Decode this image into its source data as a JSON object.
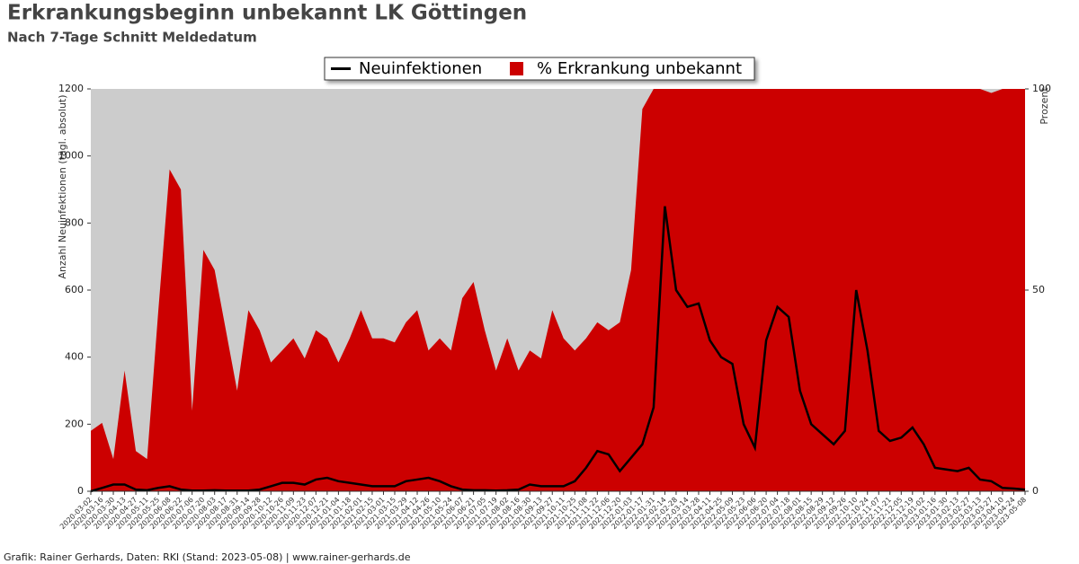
{
  "chart_data": {
    "type": "line-area",
    "title": "Erkrankungsbeginn unbekannt LK Göttingen",
    "subtitle": "Nach 7-Tage Schnitt Meldedatum",
    "ylabel": "Anzahl Neuinfektionen (tägl. absolut)",
    "y2label": "Prozent",
    "footer": "Grafik: Rainer Gerhards, Daten: RKI (Stand: 2023-05-08) | www.rainer-gerhards.de",
    "x": [
      "2020-03-02",
      "2020-03-16",
      "2020-03-30",
      "2020-04-13",
      "2020-04-27",
      "2020-05-11",
      "2020-05-25",
      "2020-06-08",
      "2020-06-22",
      "2020-07-06",
      "2020-07-20",
      "2020-08-03",
      "2020-08-17",
      "2020-08-31",
      "2020-09-14",
      "2020-09-28",
      "2020-10-12",
      "2020-10-26",
      "2020-11-09",
      "2020-11-23",
      "2020-12-07",
      "2020-12-21",
      "2021-01-04",
      "2021-01-18",
      "2021-02-01",
      "2021-02-15",
      "2021-03-01",
      "2021-03-15",
      "2021-03-29",
      "2021-04-12",
      "2021-04-26",
      "2021-05-10",
      "2021-05-24",
      "2021-06-07",
      "2021-06-21",
      "2021-07-05",
      "2021-07-19",
      "2021-08-02",
      "2021-08-16",
      "2021-08-30",
      "2021-09-13",
      "2021-09-27",
      "2021-10-11",
      "2021-10-25",
      "2021-11-08",
      "2021-11-22",
      "2021-12-06",
      "2021-12-20",
      "2022-01-03",
      "2022-01-17",
      "2022-01-31",
      "2022-02-14",
      "2022-02-28",
      "2022-03-14",
      "2022-03-28",
      "2022-04-11",
      "2022-04-25",
      "2022-05-09",
      "2022-05-23",
      "2022-06-06",
      "2022-06-20",
      "2022-07-04",
      "2022-07-18",
      "2022-08-01",
      "2022-08-15",
      "2022-08-29",
      "2022-09-12",
      "2022-09-26",
      "2022-10-10",
      "2022-10-24",
      "2022-11-07",
      "2022-11-21",
      "2022-12-05",
      "2022-12-19",
      "2023-01-02",
      "2023-01-16",
      "2023-01-30",
      "2023-02-13",
      "2023-02-27",
      "2023-03-13",
      "2023-03-27",
      "2023-04-10",
      "2023-04-24",
      "2023-05-08"
    ],
    "series": [
      {
        "name": "% Erkrankung unbekannt",
        "color": "#cc0000",
        "axis": "y2",
        "values": [
          15,
          17,
          8,
          30,
          10,
          8,
          45,
          80,
          75,
          20,
          60,
          55,
          40,
          25,
          45,
          40,
          32,
          35,
          38,
          33,
          40,
          38,
          32,
          38,
          45,
          38,
          38,
          37,
          42,
          45,
          35,
          38,
          35,
          48,
          52,
          40,
          30,
          38,
          30,
          35,
          33,
          45,
          38,
          35,
          38,
          42,
          40,
          42,
          55,
          95,
          100,
          100,
          100,
          100,
          100,
          100,
          100,
          100,
          100,
          100,
          100,
          100,
          100,
          100,
          100,
          100,
          100,
          100,
          100,
          100,
          100,
          100,
          100,
          100,
          100,
          100,
          100,
          100,
          100,
          100,
          99,
          100,
          100,
          100
        ]
      },
      {
        "name": "Neuinfektionen",
        "color": "#000000",
        "axis": "y",
        "values": [
          0,
          10,
          20,
          20,
          5,
          3,
          10,
          15,
          5,
          2,
          2,
          3,
          2,
          2,
          2,
          5,
          15,
          25,
          25,
          20,
          35,
          40,
          30,
          25,
          20,
          15,
          15,
          15,
          30,
          35,
          40,
          30,
          15,
          5,
          3,
          3,
          2,
          3,
          5,
          20,
          15,
          15,
          15,
          30,
          70,
          120,
          110,
          60,
          100,
          140,
          250,
          850,
          600,
          550,
          560,
          450,
          400,
          380,
          200,
          130,
          450,
          550,
          520,
          300,
          200,
          170,
          140,
          180,
          600,
          420,
          180,
          150,
          160,
          190,
          140,
          70,
          65,
          60,
          70,
          35,
          30,
          10,
          8,
          5
        ]
      }
    ],
    "ylim": [
      0,
      1200
    ],
    "yticks": [
      0,
      200,
      400,
      600,
      800,
      1000,
      1200
    ],
    "y2lim": [
      0,
      100
    ],
    "y2ticks": [
      0,
      50,
      100
    ],
    "background": "#cccccc"
  }
}
